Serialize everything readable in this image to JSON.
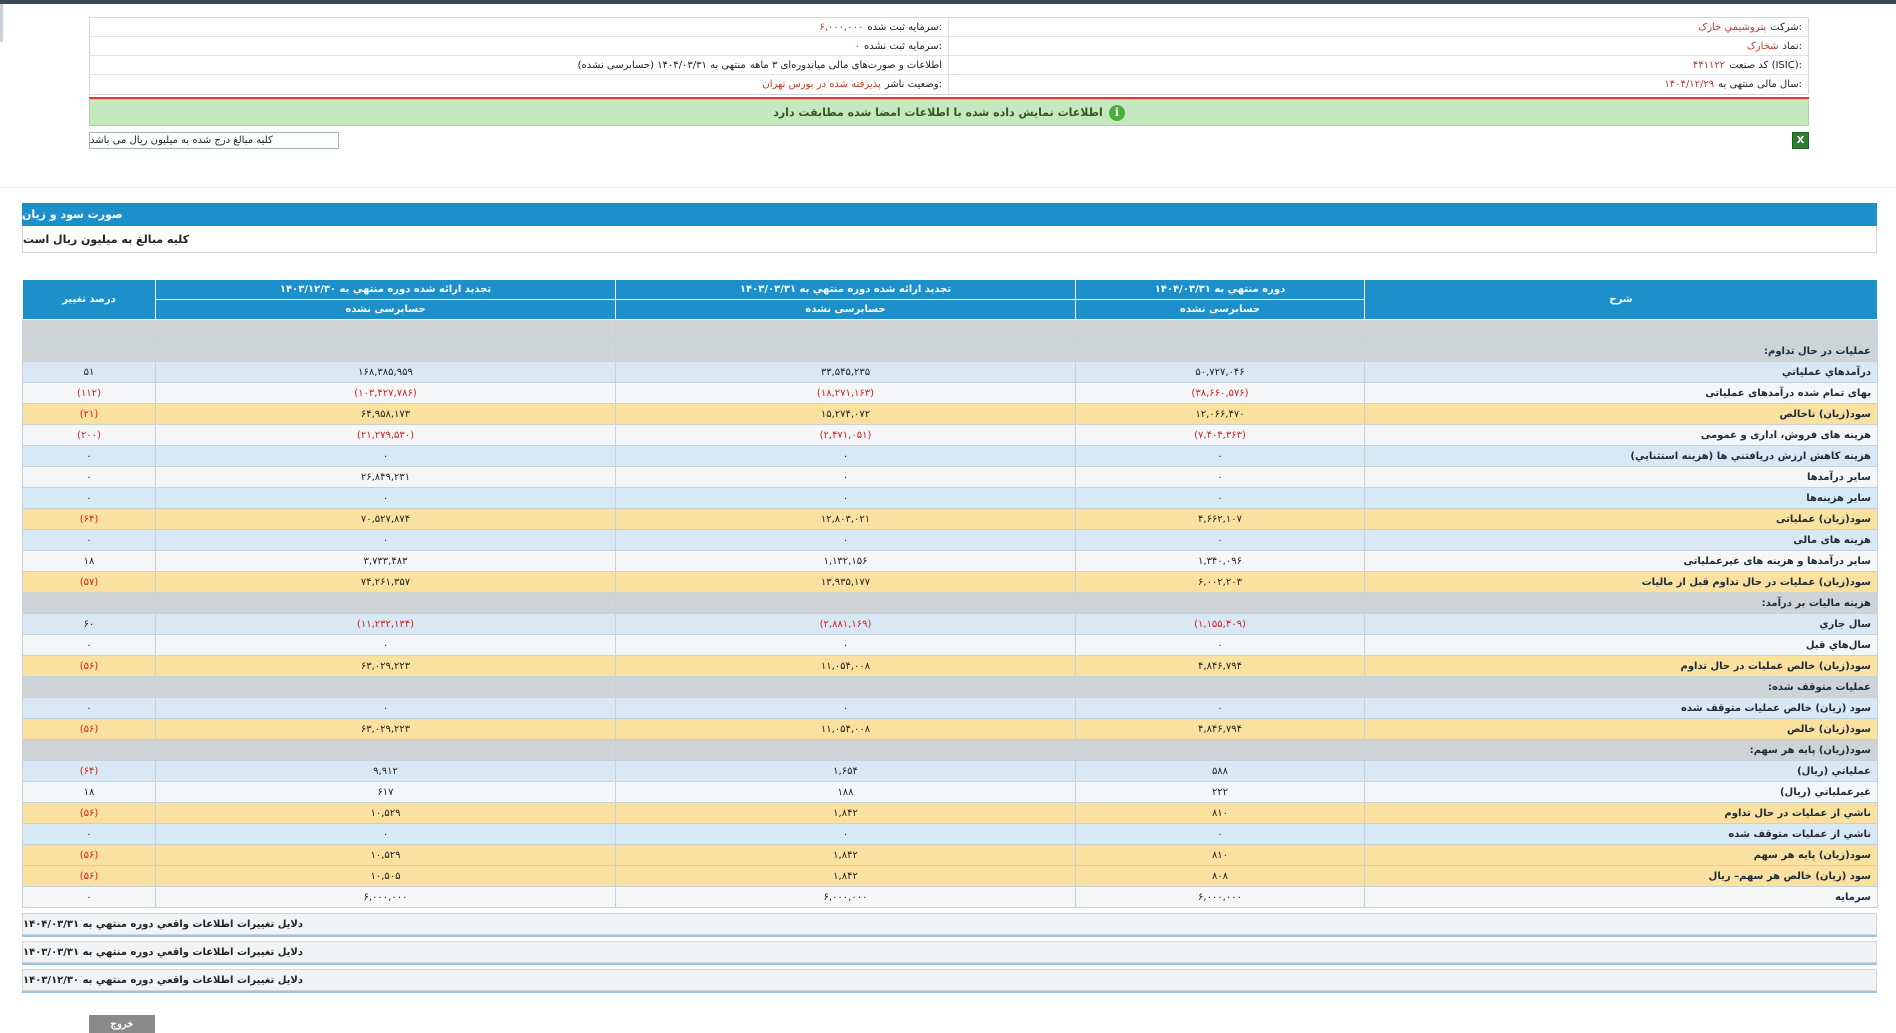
{
  "header": {
    "rows": [
      {
        "right_label": "شرکت:",
        "right_value": "پتروشيمي خارک",
        "left_label": "سرمایه ثبت شده:",
        "left_value": "۶,۰۰۰,۰۰۰"
      },
      {
        "right_label": "نماد:",
        "right_value": "شخارک",
        "left_label": "سرمایه ثبت نشده:",
        "left_value": "۰"
      },
      {
        "right_label": "کد صنعت (ISIC):",
        "right_value": "۴۴۱۱۲۲",
        "left_label": "اطلاعات و صورت‌های مالی میاندوره‌ای ۳ ماهه",
        "left_value": "منتهی به ۱۴۰۴/۰۳/۳۱ (حسابرسی نشده)"
      },
      {
        "right_label": "سال مالی منتهی به:",
        "right_value": "۱۴۰۴/۱۲/۲۹",
        "left_label": "وضعیت ناشر:",
        "left_value": "پذیرفته شده در بورس تهران"
      }
    ],
    "notice": "اطلاعات نمایش داده شده با اطلاعات امضا شده مطابقت دارد",
    "unit_note": "کلیه مبالغ درج شده به میلیون ریال می باشد"
  },
  "section": {
    "title": "صورت سود و زیان",
    "subtitle": "کلیه مبالغ به میلیون ریال است"
  },
  "table": {
    "headers": {
      "desc": "شرح",
      "col1": "دوره منتهي به ۱۴۰۴/۰۳/۳۱",
      "col2": "تجدید ارائه شده دوره منتهي به ۱۴۰۳/۰۳/۳۱",
      "col3": "تجدید ارائه شده دوره منتهي به ۱۴۰۳/۱۲/۳۰",
      "change": "درصد تغییر",
      "sub1": "حسابرسی نشده",
      "sub2": "حسابرسی نشده",
      "sub3": "حسابرسی نشده"
    },
    "rows": [
      {
        "type": "sec",
        "desc": "",
        "c1": "",
        "c2": "",
        "c3": "",
        "ch": ""
      },
      {
        "type": "sec",
        "desc": "عملیات در حال تداوم:",
        "c1": "",
        "c2": "",
        "c3": "",
        "ch": ""
      },
      {
        "type": "blue",
        "desc": "درآمدهاي عملياتي",
        "c1": "۵۰,۷۲۷,۰۴۶",
        "c2": "۳۳,۵۴۵,۲۳۵",
        "c3": "۱۶۸,۳۸۵,۹۵۹",
        "ch": "۵۱"
      },
      {
        "type": "white",
        "desc": "بهاى تمام شده درآمدهاى عملياتى",
        "c1": "(۳۸,۶۶۰,۵۷۶)",
        "c2": "(۱۸,۲۷۱,۱۶۳)",
        "c3": "(۱۰۳,۴۲۷,۷۸۶)",
        "ch": "(۱۱۲)",
        "neg": true
      },
      {
        "type": "gold",
        "desc": "سود(زيان) ناخالص",
        "c1": "۱۲,۰۶۶,۴۷۰",
        "c2": "۱۵,۲۷۴,۰۷۲",
        "c3": "۶۴,۹۵۸,۱۷۳",
        "ch": "(۲۱)",
        "negch": true
      },
      {
        "type": "white",
        "desc": "هزينه هاى فروش، ادارى و عمومى",
        "c1": "(۷,۴۰۴,۳۶۳)",
        "c2": "(۲,۴۷۱,۰۵۱)",
        "c3": "(۲۱,۲۷۹,۵۳۰)",
        "ch": "(۲۰۰)",
        "neg": true
      },
      {
        "type": "blue",
        "desc": "هزینه کاهش ارزش دریافتني ها (هزینه استثنایي)",
        "c1": "۰",
        "c2": "۰",
        "c3": "۰",
        "ch": "۰"
      },
      {
        "type": "white",
        "desc": "ساير درآمدها",
        "c1": "۰",
        "c2": "۰",
        "c3": "۲۶,۸۴۹,۲۳۱",
        "ch": "۰"
      },
      {
        "type": "blue",
        "desc": "سایر هزینه‌ها",
        "c1": "۰",
        "c2": "۰",
        "c3": "۰",
        "ch": "۰"
      },
      {
        "type": "gold",
        "desc": "سود(زيان) عملياتى",
        "c1": "۴,۶۶۲,۱۰۷",
        "c2": "۱۲,۸۰۳,۰۲۱",
        "c3": "۷۰,۵۲۷,۸۷۴",
        "ch": "(۶۴)",
        "negch": true
      },
      {
        "type": "blue",
        "desc": "هزينه هاى مالى",
        "c1": "۰",
        "c2": "۰",
        "c3": "۰",
        "ch": "۰"
      },
      {
        "type": "white",
        "desc": "ساير درآمدها و هزينه هاى غيرعملياتى",
        "c1": "۱,۳۴۰,۰۹۶",
        "c2": "۱,۱۳۲,۱۵۶",
        "c3": "۳,۷۳۳,۴۸۳",
        "ch": "۱۸"
      },
      {
        "type": "gold",
        "desc": "سود(زيان) عمليات در حال تداوم قبل از ماليات",
        "c1": "۶,۰۰۲,۲۰۳",
        "c2": "۱۳,۹۳۵,۱۷۷",
        "c3": "۷۴,۲۶۱,۳۵۷",
        "ch": "(۵۷)",
        "negch": true
      },
      {
        "type": "sec",
        "desc": "هزینه مالیات بر درآمد:",
        "c1": "",
        "c2": "",
        "c3": "",
        "ch": ""
      },
      {
        "type": "blue",
        "desc": "سال جاري",
        "c1": "(۱,۱۵۵,۴۰۹)",
        "c2": "(۲,۸۸۱,۱۶۹)",
        "c3": "(۱۱,۲۳۲,۱۳۴)",
        "ch": "۶۰",
        "negcols": true
      },
      {
        "type": "white",
        "desc": "سال‌هاي قبل",
        "c1": "۰",
        "c2": "۰",
        "c3": "۰",
        "ch": "۰"
      },
      {
        "type": "gold",
        "desc": "سود(زيان) خالص عمليات در حال تداوم",
        "c1": "۴,۸۴۶,۷۹۴",
        "c2": "۱۱,۰۵۴,۰۰۸",
        "c3": "۶۳,۰۲۹,۲۲۳",
        "ch": "(۵۶)",
        "negch": true
      },
      {
        "type": "sec",
        "desc": "عملیات متوقف شده:",
        "c1": "",
        "c2": "",
        "c3": "",
        "ch": ""
      },
      {
        "type": "blue",
        "desc": "سود (زيان) خالص عمليات متوقف شده",
        "c1": "۰",
        "c2": "۰",
        "c3": "۰",
        "ch": "۰"
      },
      {
        "type": "gold",
        "desc": "سود(زيان) خالص",
        "c1": "۴,۸۴۶,۷۹۴",
        "c2": "۱۱,۰۵۴,۰۰۸",
        "c3": "۶۳,۰۲۹,۲۲۳",
        "ch": "(۵۶)",
        "negch": true
      },
      {
        "type": "sec",
        "desc": "سود(زيان) پايه هر سهم:",
        "c1": "",
        "c2": "",
        "c3": "",
        "ch": ""
      },
      {
        "type": "blue",
        "desc": "عملياتي (ريال)",
        "c1": "۵۸۸",
        "c2": "۱,۶۵۴",
        "c3": "۹,۹۱۲",
        "ch": "(۶۴)",
        "negch": true
      },
      {
        "type": "white",
        "desc": "غيرعملياتي (ريال)",
        "c1": "۲۲۲",
        "c2": "۱۸۸",
        "c3": "۶۱۷",
        "ch": "۱۸"
      },
      {
        "type": "gold",
        "desc": "ناشي از عمليات در حال تداوم",
        "c1": "۸۱۰",
        "c2": "۱,۸۴۲",
        "c3": "۱۰,۵۲۹",
        "ch": "(۵۶)",
        "negch": true
      },
      {
        "type": "blue",
        "desc": "ناشي از عمليات متوقف شده",
        "c1": "۰",
        "c2": "۰",
        "c3": "۰",
        "ch": "۰"
      },
      {
        "type": "gold",
        "desc": "سود(زيان) پايه هر سهم",
        "c1": "۸۱۰",
        "c2": "۱,۸۴۲",
        "c3": "۱۰,۵۲۹",
        "ch": "(۵۶)",
        "negch": true
      },
      {
        "type": "gold",
        "desc": "سود (زيان) خالص هر سهم– ريال",
        "c1": "۸۰۸",
        "c2": "۱,۸۴۲",
        "c3": "۱۰,۵۰۵",
        "ch": "(۵۶)",
        "negch": true
      },
      {
        "type": "white",
        "desc": "سرمايه",
        "c1": "۶,۰۰۰,۰۰۰",
        "c2": "۶,۰۰۰,۰۰۰",
        "c3": "۶,۰۰۰,۰۰۰",
        "ch": "۰"
      }
    ]
  },
  "reasons": [
    "دلایل تغییرات اطلاعات واقعي دوره منتهي به ۱۴۰۴/۰۳/۳۱",
    "دلایل تغییرات اطلاعات واقعي دوره منتهي به ۱۴۰۳/۰۳/۳۱",
    "دلایل تغییرات اطلاعات واقعي دوره منتهي به ۱۴۰۳/۱۲/۳۰"
  ],
  "exit_label": "خروج",
  "colors": {
    "header_blue": "#1d8fca",
    "gold_row": "#fbe1a0",
    "blue_row": "#d9e8f5",
    "negative": "#d62020",
    "notice_green": "#c6e8bf"
  },
  "icons": {
    "notice": "info-icon",
    "export": "excel-icon"
  }
}
